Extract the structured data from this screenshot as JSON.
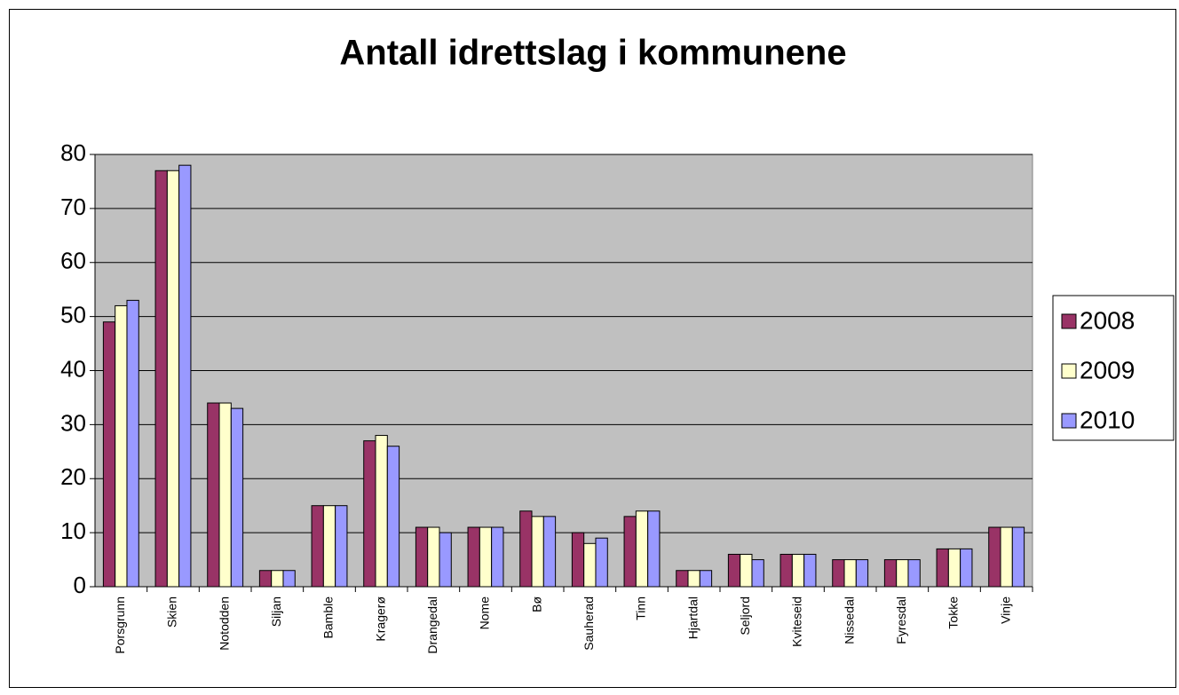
{
  "chart_data": {
    "type": "bar",
    "title": "Antall idrettslag i kommunene",
    "categories": [
      "Porsgrunn",
      "Skien",
      "Notodden",
      "Siljan",
      "Bamble",
      "Kragerø",
      "Drangedal",
      "Nome",
      "Bø",
      "Sauherad",
      "Tinn",
      "Hjartdal",
      "Seljord",
      "Kviteseid",
      "Nissedal",
      "Fyresdal",
      "Tokke",
      "Vinje"
    ],
    "series": [
      {
        "name": "2008",
        "color": "#993366",
        "values": [
          49,
          77,
          34,
          3,
          15,
          27,
          11,
          11,
          14,
          10,
          13,
          3,
          6,
          6,
          5,
          5,
          7,
          11
        ]
      },
      {
        "name": "2009",
        "color": "#ffffcc",
        "values": [
          52,
          77,
          34,
          3,
          15,
          28,
          11,
          11,
          13,
          8,
          14,
          3,
          6,
          6,
          5,
          5,
          7,
          11
        ]
      },
      {
        "name": "2010",
        "color": "#9999ff",
        "values": [
          53,
          78,
          33,
          3,
          15,
          26,
          10,
          11,
          13,
          9,
          14,
          3,
          5,
          6,
          5,
          5,
          7,
          11
        ]
      }
    ],
    "ylim": [
      0,
      80
    ],
    "yticks": [
      0,
      10,
      20,
      30,
      40,
      50,
      60,
      70,
      80
    ],
    "grid": true,
    "legend": "right",
    "plot_background": "#c0c0c0"
  }
}
